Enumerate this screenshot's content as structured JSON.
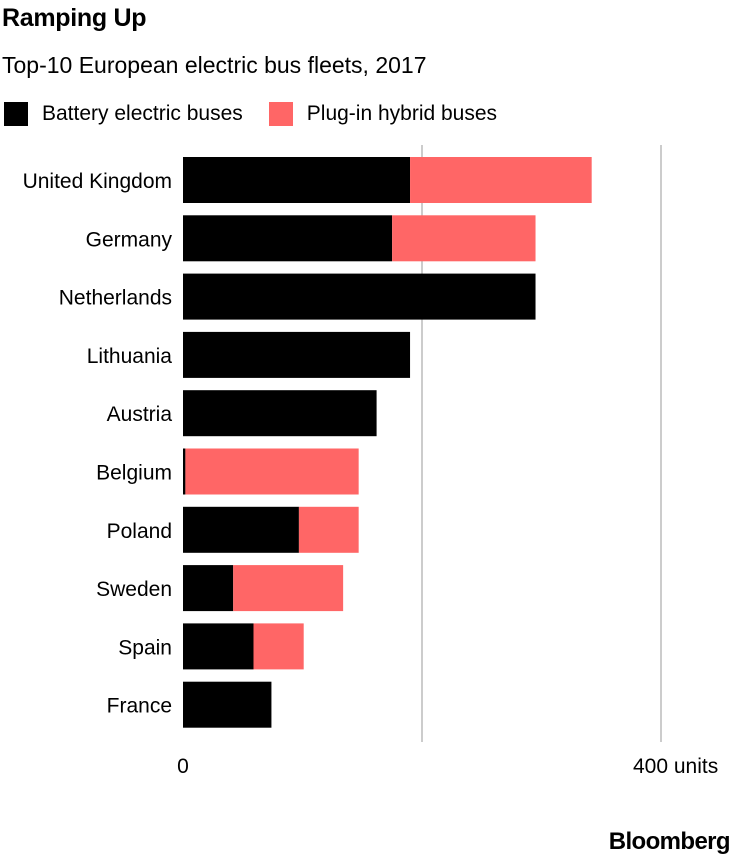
{
  "header": {
    "title": "Ramping Up",
    "subtitle": "Top-10 European electric bus fleets, 2017"
  },
  "footer": {
    "brand": "Bloomberg"
  },
  "chart_data": {
    "type": "bar",
    "orientation": "horizontal",
    "stacked": true,
    "title": "Ramping Up",
    "subtitle": "Top-10 European electric bus fleets, 2017",
    "categories": [
      "United Kingdom",
      "Germany",
      "Netherlands",
      "Lithuania",
      "Austria",
      "Belgium",
      "Poland",
      "Sweden",
      "Spain",
      "France"
    ],
    "series": [
      {
        "name": "Battery electric buses",
        "color": "#000000",
        "values": [
          190,
          175,
          295,
          190,
          162,
          2,
          97,
          42,
          59,
          74
        ]
      },
      {
        "name": "Plug-in hybrid buses",
        "color": "#ff6666",
        "values": [
          152,
          120,
          0,
          0,
          0,
          145,
          50,
          92,
          42,
          0
        ]
      }
    ],
    "xlim": [
      0,
      400
    ],
    "xticks": [
      {
        "value": 0,
        "label": "0"
      },
      {
        "value": 200,
        "label": ""
      },
      {
        "value": 400,
        "label": "400 units"
      }
    ],
    "grid": true,
    "legend_position": "top-left"
  }
}
